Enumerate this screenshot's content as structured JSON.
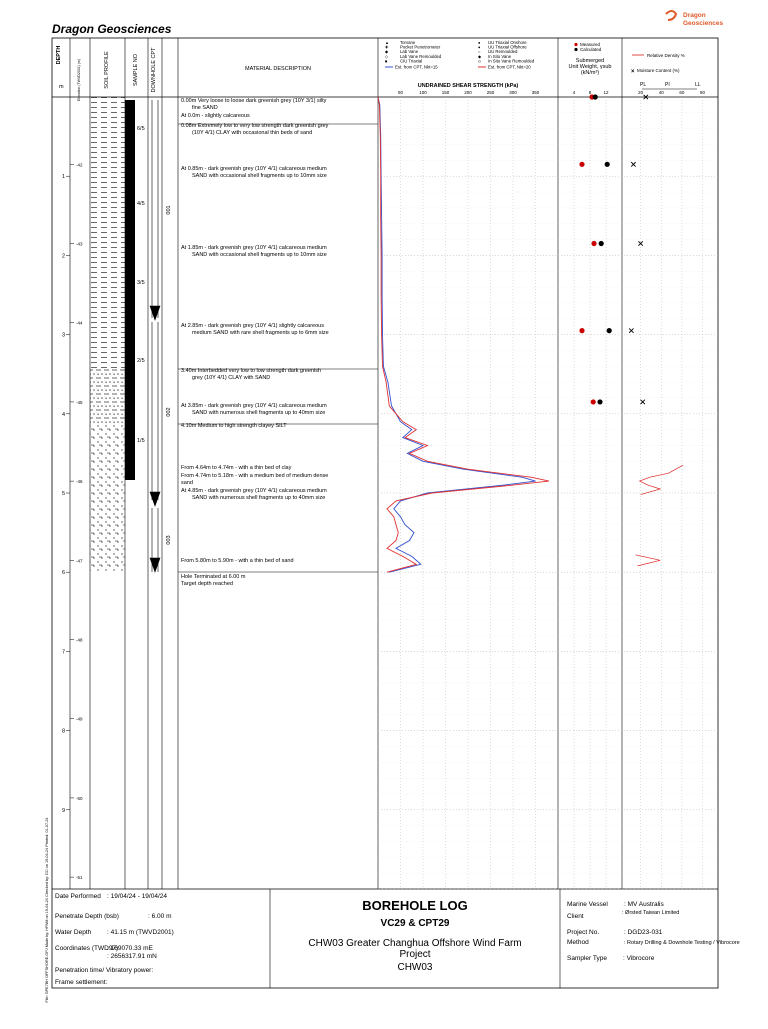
{
  "company": "Dragon Geosciences",
  "logo": [
    "Dragon",
    "Geosciences"
  ],
  "columns": {
    "depth": "DEPTH",
    "m": "m",
    "elevation": "Elevation (TWVD2001) (m)",
    "soil": "SOIL PROFILE",
    "sample": "SAMPLE NO",
    "downhole": "DOWNHOLE CPT",
    "material": "MATERIAL DESCRIPTION"
  },
  "depth_axis": {
    "ylim": [
      0,
      10
    ],
    "ticks": [
      1,
      2,
      3,
      4,
      5,
      6,
      7,
      8,
      9
    ]
  },
  "elevation_axis": {
    "ylim": [
      -41.15,
      -51.15
    ],
    "ticks": [
      -42,
      -43,
      -44,
      -45,
      -46,
      -47,
      -48,
      -49,
      -50,
      -51
    ]
  },
  "samples": [
    "6/5",
    "4/5",
    "3/5",
    "2/5",
    "1/5"
  ],
  "cpt": [
    "001",
    "002",
    "003"
  ],
  "descriptions": [
    [
      "0.00m  Very loose to loose dark greenish grey (10Y 3/1) silty",
      "fine SAND"
    ],
    [
      "At 0.0m - slightly calcareous"
    ],
    [
      "0.08m  Extremely low to very low strength dark greenish grey",
      "(10Y 4/1) CLAY with occasional thin beds of sand"
    ],
    [
      "At 0.85m - dark greenish grey (10Y 4/1) calcareous medium",
      "SAND with occasional shell fragments up to 10mm size"
    ],
    [
      "At 1.85m - dark greenish grey (10Y 4/1) calcareous medium",
      "SAND with occasional shell fragments up to 10mm size"
    ],
    [
      "At 2.85m - dark greenish grey (10Y 4/1) slightly calcareous",
      "medium SAND with rare shell fragments up to 6mm size"
    ],
    [
      "3.40m  Interbedded very low to low strength dark greenish",
      "grey (10Y 4/1) CLAY with SAND"
    ],
    [
      "At 3.85m - dark greenish grey (10Y 4/1) calcareous medium",
      "SAND with numerous shell fragments up to 40mm size"
    ],
    [
      "4.10m  Medium to high strength clayey SILT"
    ],
    [
      "From 4.64m to 4.74m - with a thin bed of clay"
    ],
    [
      "From 4.74m to 5.18m - with a medium bed of medium dense",
      "sand"
    ],
    [
      "At 4.85m - dark greenish grey (10Y 4/1) calcareous medium",
      "SAND with numerous shell fragments up to 40mm size"
    ],
    [
      "From 5.80m to 5.90m - with a thin bed of sand"
    ],
    [
      "Hole Terminated at 6.00 m",
      "Target depth reached"
    ]
  ],
  "shear": {
    "legend_left": [
      "Torvane",
      "Pocket Penetrometer",
      "Lab Vane",
      "Lab Vane Remoulded",
      "CIU Triaxial"
    ],
    "legend_right": [
      "UU Triaxial Onshore",
      "UU Triaxial Offshore",
      "UU Remoulded",
      "In Situ Vane",
      "In Situ Vane Remoulded"
    ],
    "title": "UNDRAINED SHEAR STRENGTH (kPa)",
    "xlim": [
      0,
      400
    ],
    "xticks": [
      50,
      100,
      150,
      200,
      250,
      300,
      350
    ],
    "depth": [
      0,
      0.1,
      0.5,
      1,
      1.5,
      2,
      2.5,
      3,
      3.4,
      3.6,
      3.9,
      4.1,
      4.2,
      4.3,
      4.4,
      4.5,
      4.6,
      4.7,
      4.8,
      4.85,
      4.9,
      5.0,
      5.1,
      5.2,
      5.3,
      5.4,
      5.5,
      5.6,
      5.7,
      5.8,
      5.9,
      6.0
    ],
    "series": [
      {
        "name": "Est. from CPT, Nkt=15",
        "color": "#3050d0",
        "values": [
          0,
          4,
          6,
          7,
          8,
          9,
          9,
          10,
          12,
          22,
          30,
          50,
          75,
          55,
          100,
          65,
          100,
          190,
          320,
          350,
          280,
          110,
          50,
          35,
          50,
          60,
          80,
          70,
          40,
          75,
          95,
          25
        ]
      },
      {
        "name": "Est. from CPT, Nkt=20",
        "color": "#e03030",
        "values": [
          0,
          3,
          5,
          6,
          6,
          7,
          7,
          8,
          10,
          18,
          25,
          55,
          85,
          60,
          110,
          70,
          110,
          200,
          340,
          380,
          300,
          120,
          40,
          20,
          35,
          40,
          45,
          40,
          20,
          55,
          85,
          20
        ]
      }
    ]
  },
  "unit_weight": {
    "legend": [
      "Measured",
      "Calculated"
    ],
    "title": [
      "Submerged",
      "Unit Weight, γsub",
      "(kN/m³)"
    ],
    "xlim": [
      0,
      16
    ],
    "xticks": [
      4,
      8,
      12
    ],
    "depth": [
      0,
      0.85,
      1.85,
      2.95,
      3.85
    ],
    "measured": [
      8.5,
      6,
      9,
      6,
      8.8
    ],
    "calculated": [
      9.3,
      12.3,
      10.8,
      12.8,
      10.5
    ]
  },
  "density": {
    "legend_rd": "Relative Density %",
    "legend_mc": "Moisture Content (%)",
    "labels": [
      "PL",
      "PI",
      "LL"
    ],
    "xlim": [
      0,
      95
    ],
    "xticks": [
      20,
      40,
      60,
      80
    ],
    "moisture_depth": [
      0,
      0.85,
      1.85,
      2.95,
      3.85
    ],
    "moisture": [
      25,
      13,
      20,
      11,
      22
    ],
    "rd_depth": [
      4.65,
      4.75,
      4.8,
      4.85,
      4.9,
      4.95,
      5.02,
      5.7,
      5.78,
      5.85,
      5.92
    ],
    "rd": [
      61,
      47,
      29,
      19,
      27,
      39,
      20,
      null,
      15,
      39,
      17
    ]
  },
  "footer": {
    "date_label": "Date Performed",
    "date": ": 19/04/24 - 19/04/24",
    "pen_label": "Penetrate Depth (bsb)",
    "pen": ": 6.00 m",
    "water_label": "Water Depth",
    "water": ": 41.15 m (TWVD2001)",
    "coord_label": "Coordinates (TWD97)",
    "coord_e": ": 169070.33 mE",
    "coord_n": ": 2656317.91 mN",
    "pen_time": "Penetration time/ Vibratory power:",
    "frame": "Frame settlement:",
    "title": "BOREHOLE LOG",
    "hole": "VC29 & CPT29",
    "project": "CHW03 Greater Changhua Offshore Wind Farm",
    "project2": "Project",
    "site": "CHW03",
    "vessel_label": "Marine Vessel",
    "vessel": ": MV Australis",
    "client_label": "Client",
    "client": ": Ørsted Taiwan Limited",
    "projno_label": "Project No.",
    "projno": ": DGD23-031",
    "method_label": "Method",
    "method": ": Rotary Drilling & Downhole Testing / Vibrocore",
    "sampler_label": "Sampler Type",
    "sampler": ": Vibrocore"
  },
  "side_note": "File: GPE7BH OFFSHORE.GPJ  Made by: HFNM on 19-04-24  Checked by: DC on 19-04-24  Printed: 01-07-24"
}
